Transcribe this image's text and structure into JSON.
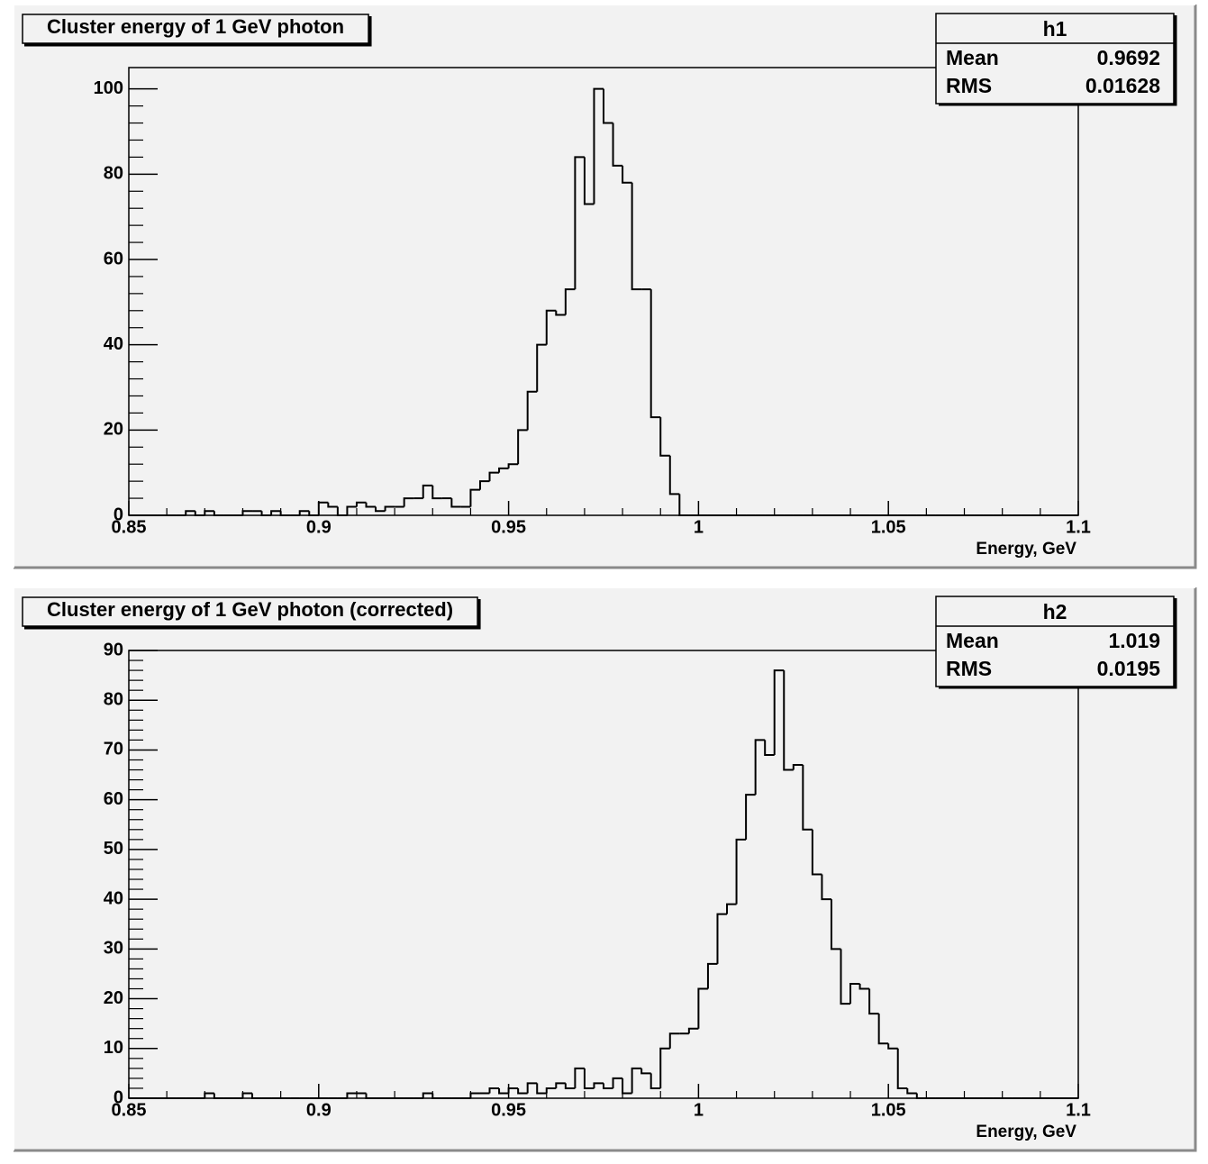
{
  "chart_data": [
    {
      "type": "histogram",
      "title": "Cluster energy of 1 GeV photon",
      "xlabel": "Energy, GeV",
      "stats": {
        "name": "h1",
        "entries": [
          {
            "label": "Mean",
            "value": "0.9692"
          },
          {
            "label": "RMS",
            "value": "0.01628"
          }
        ]
      },
      "bins": [
        0.85,
        0.8525,
        0.855,
        0.8575,
        0.86,
        0.8625,
        0.865,
        0.8675,
        0.87,
        0.8725,
        0.875,
        0.8775,
        0.88,
        0.8825,
        0.885,
        0.8875,
        0.89,
        0.8925,
        0.895,
        0.8975,
        0.9,
        0.9025,
        0.905,
        0.9075,
        0.91,
        0.9125,
        0.915,
        0.9175,
        0.92,
        0.9225,
        0.925,
        0.9275,
        0.93,
        0.9325,
        0.935,
        0.9375,
        0.94,
        0.9425,
        0.945,
        0.9475,
        0.95,
        0.9525,
        0.955,
        0.9575,
        0.96,
        0.9625,
        0.965,
        0.9675,
        0.97,
        0.9725,
        0.975,
        0.9775,
        0.98,
        0.9825,
        0.985,
        0.9875,
        0.99,
        0.9925,
        0.995,
        0.9975,
        1,
        1.0025,
        1.005,
        1.0075,
        1.01,
        1.0125,
        1.015,
        1.0175,
        1.02,
        1.0225,
        1.025,
        1.0275,
        1.03,
        1.0325,
        1.035,
        1.0375,
        1.04,
        1.0425,
        1.045,
        1.0475,
        1.05,
        1.0525,
        1.055,
        1.0575,
        1.06,
        1.0625,
        1.065,
        1.0675,
        1.07,
        1.0725,
        1.075,
        1.0775,
        1.08,
        1.0825,
        1.085,
        1.0875,
        1.09,
        1.0925,
        1.095,
        1.0975,
        1.1
      ],
      "values": [
        0,
        0,
        0,
        0,
        0,
        0,
        1,
        0,
        1,
        0,
        0,
        0,
        1,
        1,
        0,
        1,
        0,
        0,
        1,
        0,
        3,
        2,
        0,
        2,
        3,
        2,
        1,
        2,
        2,
        4,
        4,
        7,
        4,
        4,
        2,
        2,
        6,
        8,
        10,
        11,
        12,
        20,
        29,
        40,
        48,
        47,
        53,
        84,
        73,
        100,
        92,
        82,
        78,
        53,
        53,
        23,
        14,
        5,
        0,
        0,
        0,
        0,
        0,
        0,
        0,
        0,
        0,
        0,
        0,
        0,
        0,
        0,
        0,
        0,
        0,
        0,
        0,
        0,
        0,
        0,
        0,
        0,
        0,
        0,
        0,
        0,
        0,
        0,
        0,
        0,
        0,
        0,
        0,
        0,
        0,
        0,
        0,
        0,
        0,
        0
      ],
      "color": "#000000",
      "xlim": [
        0.85,
        1.1
      ],
      "xticks": [
        0.85,
        0.9,
        0.95,
        1,
        1.05,
        1.1
      ],
      "ylim": [
        0,
        105
      ],
      "yticks": [
        0,
        20,
        40,
        60,
        80,
        100
      ]
    },
    {
      "type": "histogram",
      "title": "Cluster energy of 1 GeV photon (corrected)",
      "xlabel": "Energy, GeV",
      "stats": {
        "name": "h2",
        "entries": [
          {
            "label": "Mean",
            "value": "1.019"
          },
          {
            "label": "RMS",
            "value": "0.0195"
          }
        ]
      },
      "bins": [
        0.85,
        0.8525,
        0.855,
        0.8575,
        0.86,
        0.8625,
        0.865,
        0.8675,
        0.87,
        0.8725,
        0.875,
        0.8775,
        0.88,
        0.8825,
        0.885,
        0.8875,
        0.89,
        0.8925,
        0.895,
        0.8975,
        0.9,
        0.9025,
        0.905,
        0.9075,
        0.91,
        0.9125,
        0.915,
        0.9175,
        0.92,
        0.9225,
        0.925,
        0.9275,
        0.93,
        0.9325,
        0.935,
        0.9375,
        0.94,
        0.9425,
        0.945,
        0.9475,
        0.95,
        0.9525,
        0.955,
        0.9575,
        0.96,
        0.9625,
        0.965,
        0.9675,
        0.97,
        0.9725,
        0.975,
        0.9775,
        0.98,
        0.9825,
        0.985,
        0.9875,
        0.99,
        0.9925,
        0.995,
        0.9975,
        1,
        1.0025,
        1.005,
        1.0075,
        1.01,
        1.0125,
        1.015,
        1.0175,
        1.02,
        1.0225,
        1.025,
        1.0275,
        1.03,
        1.0325,
        1.035,
        1.0375,
        1.04,
        1.0425,
        1.045,
        1.0475,
        1.05,
        1.0525,
        1.055,
        1.0575,
        1.06,
        1.0625,
        1.065,
        1.0675,
        1.07,
        1.0725,
        1.075,
        1.0775,
        1.08,
        1.0825,
        1.085,
        1.0875,
        1.09,
        1.0925,
        1.095,
        1.0975,
        1.1
      ],
      "values": [
        0,
        0,
        0,
        0,
        0,
        0,
        0,
        0,
        1,
        0,
        0,
        0,
        1,
        0,
        0,
        0,
        0,
        0,
        0,
        0,
        0,
        0,
        0,
        1,
        1,
        0,
        0,
        0,
        0,
        0,
        0,
        1,
        0,
        0,
        0,
        0,
        1,
        1,
        2,
        1,
        2,
        1,
        3,
        1,
        2,
        3,
        2,
        6,
        2,
        3,
        2,
        4,
        1,
        6,
        5,
        2,
        10,
        13,
        13,
        14,
        22,
        27,
        37,
        39,
        52,
        61,
        72,
        69,
        86,
        66,
        67,
        54,
        45,
        40,
        30,
        19,
        23,
        22,
        17,
        11,
        10,
        2,
        1,
        0,
        0,
        0,
        0,
        0,
        0,
        0,
        0,
        0,
        0,
        0,
        0,
        0,
        0,
        0,
        0,
        0
      ],
      "color": "#000000",
      "xlim": [
        0.85,
        1.1
      ],
      "xticks": [
        0.85,
        0.9,
        0.95,
        1,
        1.05,
        1.1
      ],
      "ylim": [
        0,
        90
      ],
      "yticks": [
        0,
        10,
        20,
        30,
        40,
        50,
        60,
        70,
        80,
        90
      ]
    }
  ]
}
